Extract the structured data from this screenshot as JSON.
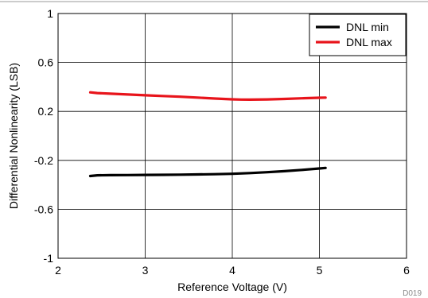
{
  "chart_data": {
    "type": "line",
    "title": "",
    "xlabel": "Reference Voltage (V)",
    "ylabel": "Differential Nonlinearity (LSB)",
    "xlim": [
      2,
      6
    ],
    "ylim": [
      -1,
      1
    ],
    "xticks": [
      2,
      3,
      4,
      5,
      6
    ],
    "xtick_labels": [
      "2",
      "3",
      "4",
      "5",
      "6"
    ],
    "yticks": [
      -1,
      -0.6,
      -0.2,
      0.2,
      0.6,
      1
    ],
    "ytick_labels": [
      "-1",
      "-0.6",
      "-0.2",
      "0.2",
      "0.6",
      "1"
    ],
    "grid": true,
    "legend_position": "top-right",
    "series": [
      {
        "name": "DNL min",
        "color": "#000000",
        "x": [
          2.37,
          2.45,
          2.6,
          2.8,
          3.0,
          3.2,
          3.4,
          3.6,
          3.8,
          4.0,
          4.2,
          4.4,
          4.6,
          4.8,
          5.0,
          5.07
        ],
        "y": [
          -0.328,
          -0.322,
          -0.321,
          -0.32,
          -0.319,
          -0.318,
          -0.317,
          -0.315,
          -0.313,
          -0.31,
          -0.304,
          -0.297,
          -0.288,
          -0.278,
          -0.266,
          -0.262
        ]
      },
      {
        "name": "DNL max",
        "color": "#e8141b",
        "x": [
          2.37,
          2.45,
          2.6,
          2.8,
          3.0,
          3.2,
          3.4,
          3.6,
          3.8,
          4.0,
          4.1,
          4.2,
          4.4,
          4.6,
          4.8,
          5.0,
          5.07
        ],
        "y": [
          0.356,
          0.35,
          0.345,
          0.338,
          0.332,
          0.326,
          0.32,
          0.313,
          0.305,
          0.299,
          0.297,
          0.296,
          0.298,
          0.302,
          0.307,
          0.312,
          0.313
        ]
      }
    ]
  },
  "figure_id": "D019"
}
